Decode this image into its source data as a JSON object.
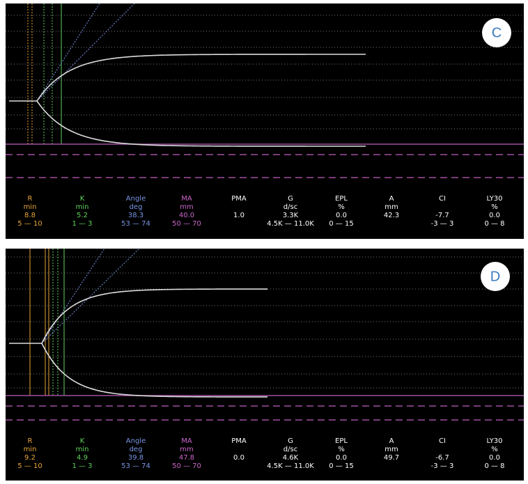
{
  "panels": [
    {
      "label": "C",
      "params": [
        {
          "name": "R",
          "unit": "min",
          "value": "8.8",
          "range": "5 — 10",
          "color": "#e8a53a"
        },
        {
          "name": "K",
          "unit": "min",
          "value": "5.2",
          "range": "1 — 3",
          "color": "#5fd35f"
        },
        {
          "name": "Angle",
          "unit": "deg",
          "value": "38.3",
          "range": "53 — 74",
          "color": "#7a96e6"
        },
        {
          "name": "MA",
          "unit": "mm",
          "value": "40.0",
          "range": "50 — 70",
          "color": "#cc66cc"
        },
        {
          "name": "PMA",
          "value": "1.0",
          "color": "#ffffff"
        },
        {
          "name": "G",
          "unit": "d/sc",
          "value": "3.3K",
          "range": "4.5K — 11.0K",
          "color": "#ffffff"
        },
        {
          "name": "EPL",
          "unit": "%",
          "value": "0.0",
          "range": "0 — 15",
          "color": "#ffffff"
        },
        {
          "name": "A",
          "unit": "mm",
          "value": "42.3",
          "color": "#ffffff"
        },
        {
          "name": "CI",
          "value": "-7.7",
          "range": "-3 — 3",
          "color": "#ffffff"
        },
        {
          "name": "LY30",
          "unit": "%",
          "value": "0.0",
          "range": "0 — 8",
          "color": "#ffffff"
        }
      ]
    },
    {
      "label": "D",
      "params": [
        {
          "name": "R",
          "unit": "min",
          "value": "9.2",
          "range": "5 — 10",
          "color": "#e8a53a"
        },
        {
          "name": "K",
          "unit": "min",
          "value": "4.9",
          "range": "1 — 3",
          "color": "#5fd35f"
        },
        {
          "name": "Angle",
          "unit": "deg",
          "value": "39.8",
          "range": "53 — 74",
          "color": "#7a96e6"
        },
        {
          "name": "MA",
          "unit": "mm",
          "value": "47.8",
          "range": "50 — 70",
          "color": "#cc66cc"
        },
        {
          "name": "PMA",
          "value": "0.0",
          "color": "#ffffff"
        },
        {
          "name": "G",
          "unit": "d/sc",
          "value": "4.6K",
          "range": "4.5K — 11.0K",
          "color": "#ffffff"
        },
        {
          "name": "EPL",
          "unit": "%",
          "value": "0.0",
          "range": "0 — 15",
          "color": "#ffffff"
        },
        {
          "name": "A",
          "unit": "mm",
          "value": "49.7",
          "color": "#ffffff"
        },
        {
          "name": "CI",
          "value": "-6.7",
          "range": "-3 — 3",
          "color": "#ffffff"
        },
        {
          "name": "LY30",
          "unit": "%",
          "value": "0.0",
          "range": "0 — 8",
          "color": "#ffffff"
        }
      ]
    }
  ]
}
